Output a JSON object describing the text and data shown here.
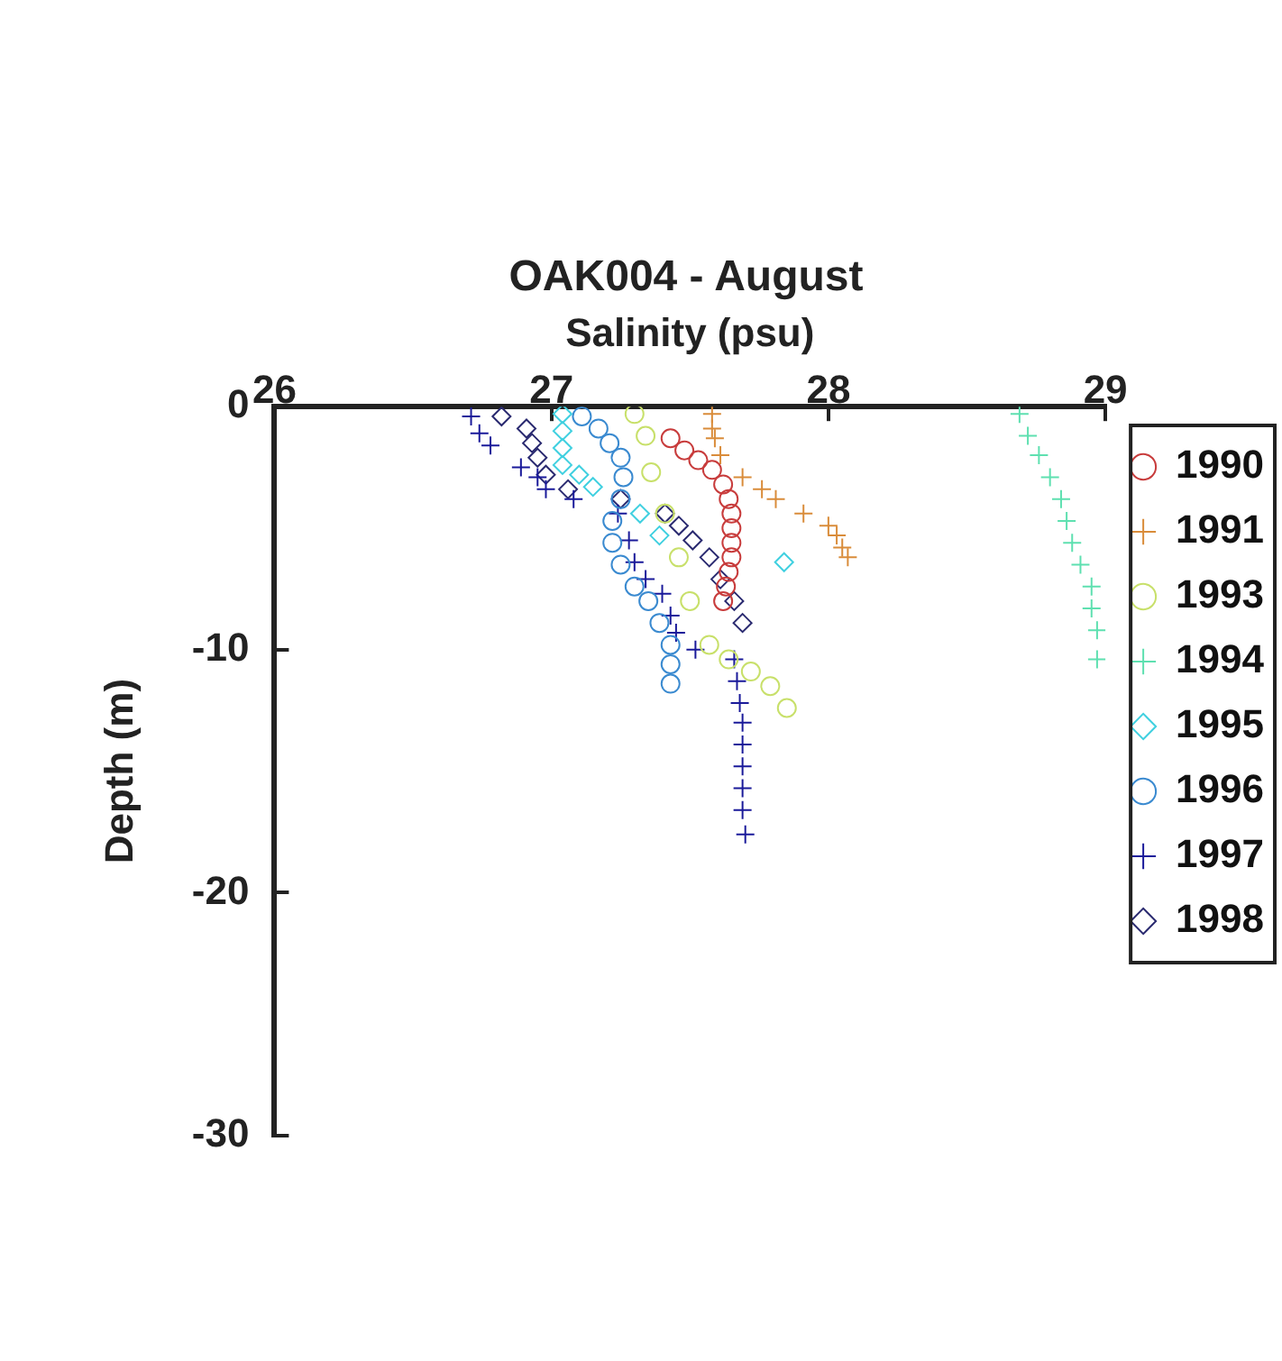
{
  "chart_data": {
    "type": "scatter",
    "title": "OAK004 - August",
    "xlabel": "Salinity (psu)",
    "ylabel": "Depth (m)",
    "xlim": [
      26,
      29
    ],
    "xticks": [
      26,
      27,
      28,
      29
    ],
    "ylim": [
      -30,
      0
    ],
    "yticks": [
      -30,
      -20,
      -10,
      0
    ],
    "grid": false,
    "legend": "right",
    "series": [
      {
        "name": "1990",
        "color": "#c83c3c",
        "marker": "circle",
        "x": [
          27.43,
          27.48,
          27.53,
          27.58,
          27.62,
          27.64,
          27.65,
          27.65,
          27.65,
          27.65,
          27.64,
          27.63,
          27.62
        ],
        "values": [
          -1.3,
          -1.8,
          -2.2,
          -2.6,
          -3.2,
          -3.8,
          -4.4,
          -5.0,
          -5.6,
          -6.2,
          -6.8,
          -7.4,
          -8.0
        ]
      },
      {
        "name": "1991",
        "color": "#d98c3a",
        "marker": "cross",
        "x": [
          27.58,
          27.58,
          27.59,
          27.61,
          27.69,
          27.76,
          27.81,
          27.91,
          28.0,
          28.03,
          28.05,
          28.07
        ],
        "values": [
          -0.3,
          -0.9,
          -1.3,
          -2.0,
          -2.9,
          -3.4,
          -3.8,
          -4.4,
          -4.9,
          -5.3,
          -5.8,
          -6.2
        ]
      },
      {
        "name": "1993",
        "color": "#c8e06a",
        "marker": "circle",
        "x": [
          27.3,
          27.34,
          27.36,
          27.41,
          27.46,
          27.5,
          27.57,
          27.64,
          27.72,
          27.79,
          27.85
        ],
        "values": [
          -0.3,
          -1.2,
          -2.7,
          -4.4,
          -6.2,
          -8.0,
          -9.8,
          -10.4,
          -10.9,
          -11.5,
          -12.4
        ]
      },
      {
        "name": "1994",
        "color": "#5ee0b0",
        "marker": "cross",
        "x": [
          28.69,
          28.72,
          28.76,
          28.8,
          28.84,
          28.86,
          28.88,
          28.91,
          28.95,
          28.95,
          28.97,
          28.97
        ],
        "values": [
          -0.3,
          -1.2,
          -2.0,
          -2.9,
          -3.8,
          -4.7,
          -5.6,
          -6.5,
          -7.4,
          -8.3,
          -9.2,
          -10.4
        ]
      },
      {
        "name": "1995",
        "color": "#40d0e0",
        "marker": "diamond",
        "x": [
          27.04,
          27.04,
          27.04,
          27.04,
          27.1,
          27.15,
          27.32,
          27.39,
          27.84
        ],
        "values": [
          -0.3,
          -1.0,
          -1.7,
          -2.4,
          -2.8,
          -3.3,
          -4.4,
          -5.3,
          -6.4
        ]
      },
      {
        "name": "1996",
        "color": "#3a8ad0",
        "marker": "circle",
        "x": [
          27.11,
          27.17,
          27.21,
          27.25,
          27.26,
          27.25,
          27.22,
          27.22,
          27.25,
          27.3,
          27.35,
          27.39,
          27.43,
          27.43,
          27.43
        ],
        "values": [
          -0.4,
          -0.9,
          -1.5,
          -2.1,
          -2.9,
          -3.8,
          -4.7,
          -5.6,
          -6.5,
          -7.4,
          -8.0,
          -8.9,
          -9.8,
          -10.6,
          -11.4
        ]
      },
      {
        "name": "1997",
        "color": "#1a1a9a",
        "marker": "cross",
        "x": [
          26.71,
          26.74,
          26.78,
          26.89,
          26.95,
          26.98,
          27.08,
          27.24,
          27.28,
          27.3,
          27.34,
          27.4,
          27.43,
          27.45,
          27.52,
          27.66,
          27.67,
          27.68,
          27.69,
          27.69,
          27.69,
          27.69,
          27.69,
          27.7
        ],
        "values": [
          -0.4,
          -1.1,
          -1.6,
          -2.5,
          -2.9,
          -3.4,
          -3.8,
          -4.4,
          -5.5,
          -6.4,
          -7.1,
          -7.7,
          -8.6,
          -9.3,
          -10.0,
          -10.4,
          -11.3,
          -12.2,
          -13.0,
          -13.9,
          -14.8,
          -15.7,
          -16.6,
          -17.6
        ]
      },
      {
        "name": "1998",
        "color": "#2a2a70",
        "marker": "diamond",
        "x": [
          26.82,
          26.91,
          26.93,
          26.95,
          26.98,
          27.06,
          27.25,
          27.41,
          27.46,
          27.51,
          27.57,
          27.61,
          27.66,
          27.69
        ],
        "values": [
          -0.4,
          -0.9,
          -1.5,
          -2.1,
          -2.8,
          -3.4,
          -3.8,
          -4.4,
          -4.9,
          -5.5,
          -6.2,
          -7.1,
          -8.0,
          -8.9
        ]
      }
    ]
  }
}
